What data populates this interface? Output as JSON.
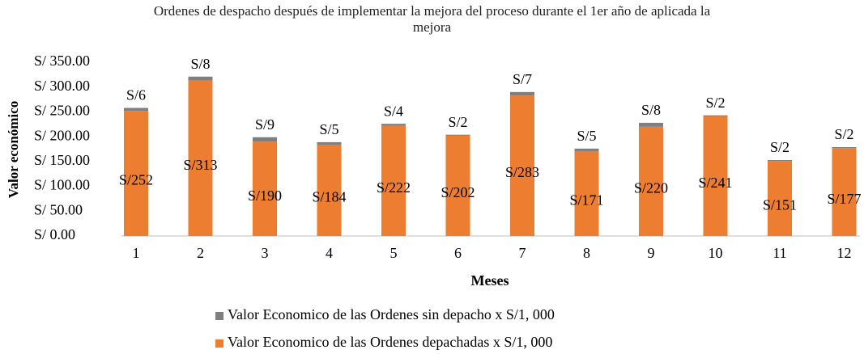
{
  "chart_data": {
    "type": "stacked_bar",
    "title": "Ordenes de despacho después de implementar la mejora del proceso durante el 1er año de aplicada la mejora",
    "x_label": "Meses",
    "y_label": "Valor económico",
    "categories": [
      "1",
      "2",
      "3",
      "4",
      "5",
      "6",
      "7",
      "8",
      "9",
      "10",
      "11",
      "12"
    ],
    "series": [
      {
        "name": "Valor Economico de las Ordenes depachadas x S/1, 000",
        "color": "#ed7d31",
        "values": [
          252,
          313,
          190,
          184,
          222,
          202,
          283,
          171,
          220,
          241,
          151,
          177
        ],
        "value_labels": [
          "S/252",
          "S/313",
          "S/190",
          "S/184",
          "S/222",
          "S/202",
          "S/283",
          "S/171",
          "S/220",
          "S/241",
          "S/151",
          "S/177"
        ]
      },
      {
        "name": "Valor Economico de las Ordenes sin depacho x S/1, 000",
        "color": "#7f7f7f",
        "values": [
          6,
          8,
          9,
          5,
          4,
          2,
          7,
          5,
          8,
          2,
          2,
          2
        ],
        "value_labels": [
          "S/6",
          "S/8",
          "S/9",
          "S/5",
          "S/4",
          "S/2",
          "S/7",
          "S/5",
          "S/8",
          "S/2",
          "S/2",
          "S/2"
        ]
      }
    ],
    "ylim": [
      0,
      350
    ],
    "yticks": [
      {
        "value": 0,
        "label": "S/ 0.00"
      },
      {
        "value": 50,
        "label": "S/ 50.00"
      },
      {
        "value": 100,
        "label": "S/ 100.00"
      },
      {
        "value": 150,
        "label": "S/ 150.00"
      },
      {
        "value": 200,
        "label": "S/ 200.00"
      },
      {
        "value": 250,
        "label": "S/ 250.00"
      },
      {
        "value": 300,
        "label": "S/ 300.00"
      },
      {
        "value": 350,
        "label": "S/ 350.00"
      }
    ],
    "grid": false,
    "legend": "bottom"
  }
}
